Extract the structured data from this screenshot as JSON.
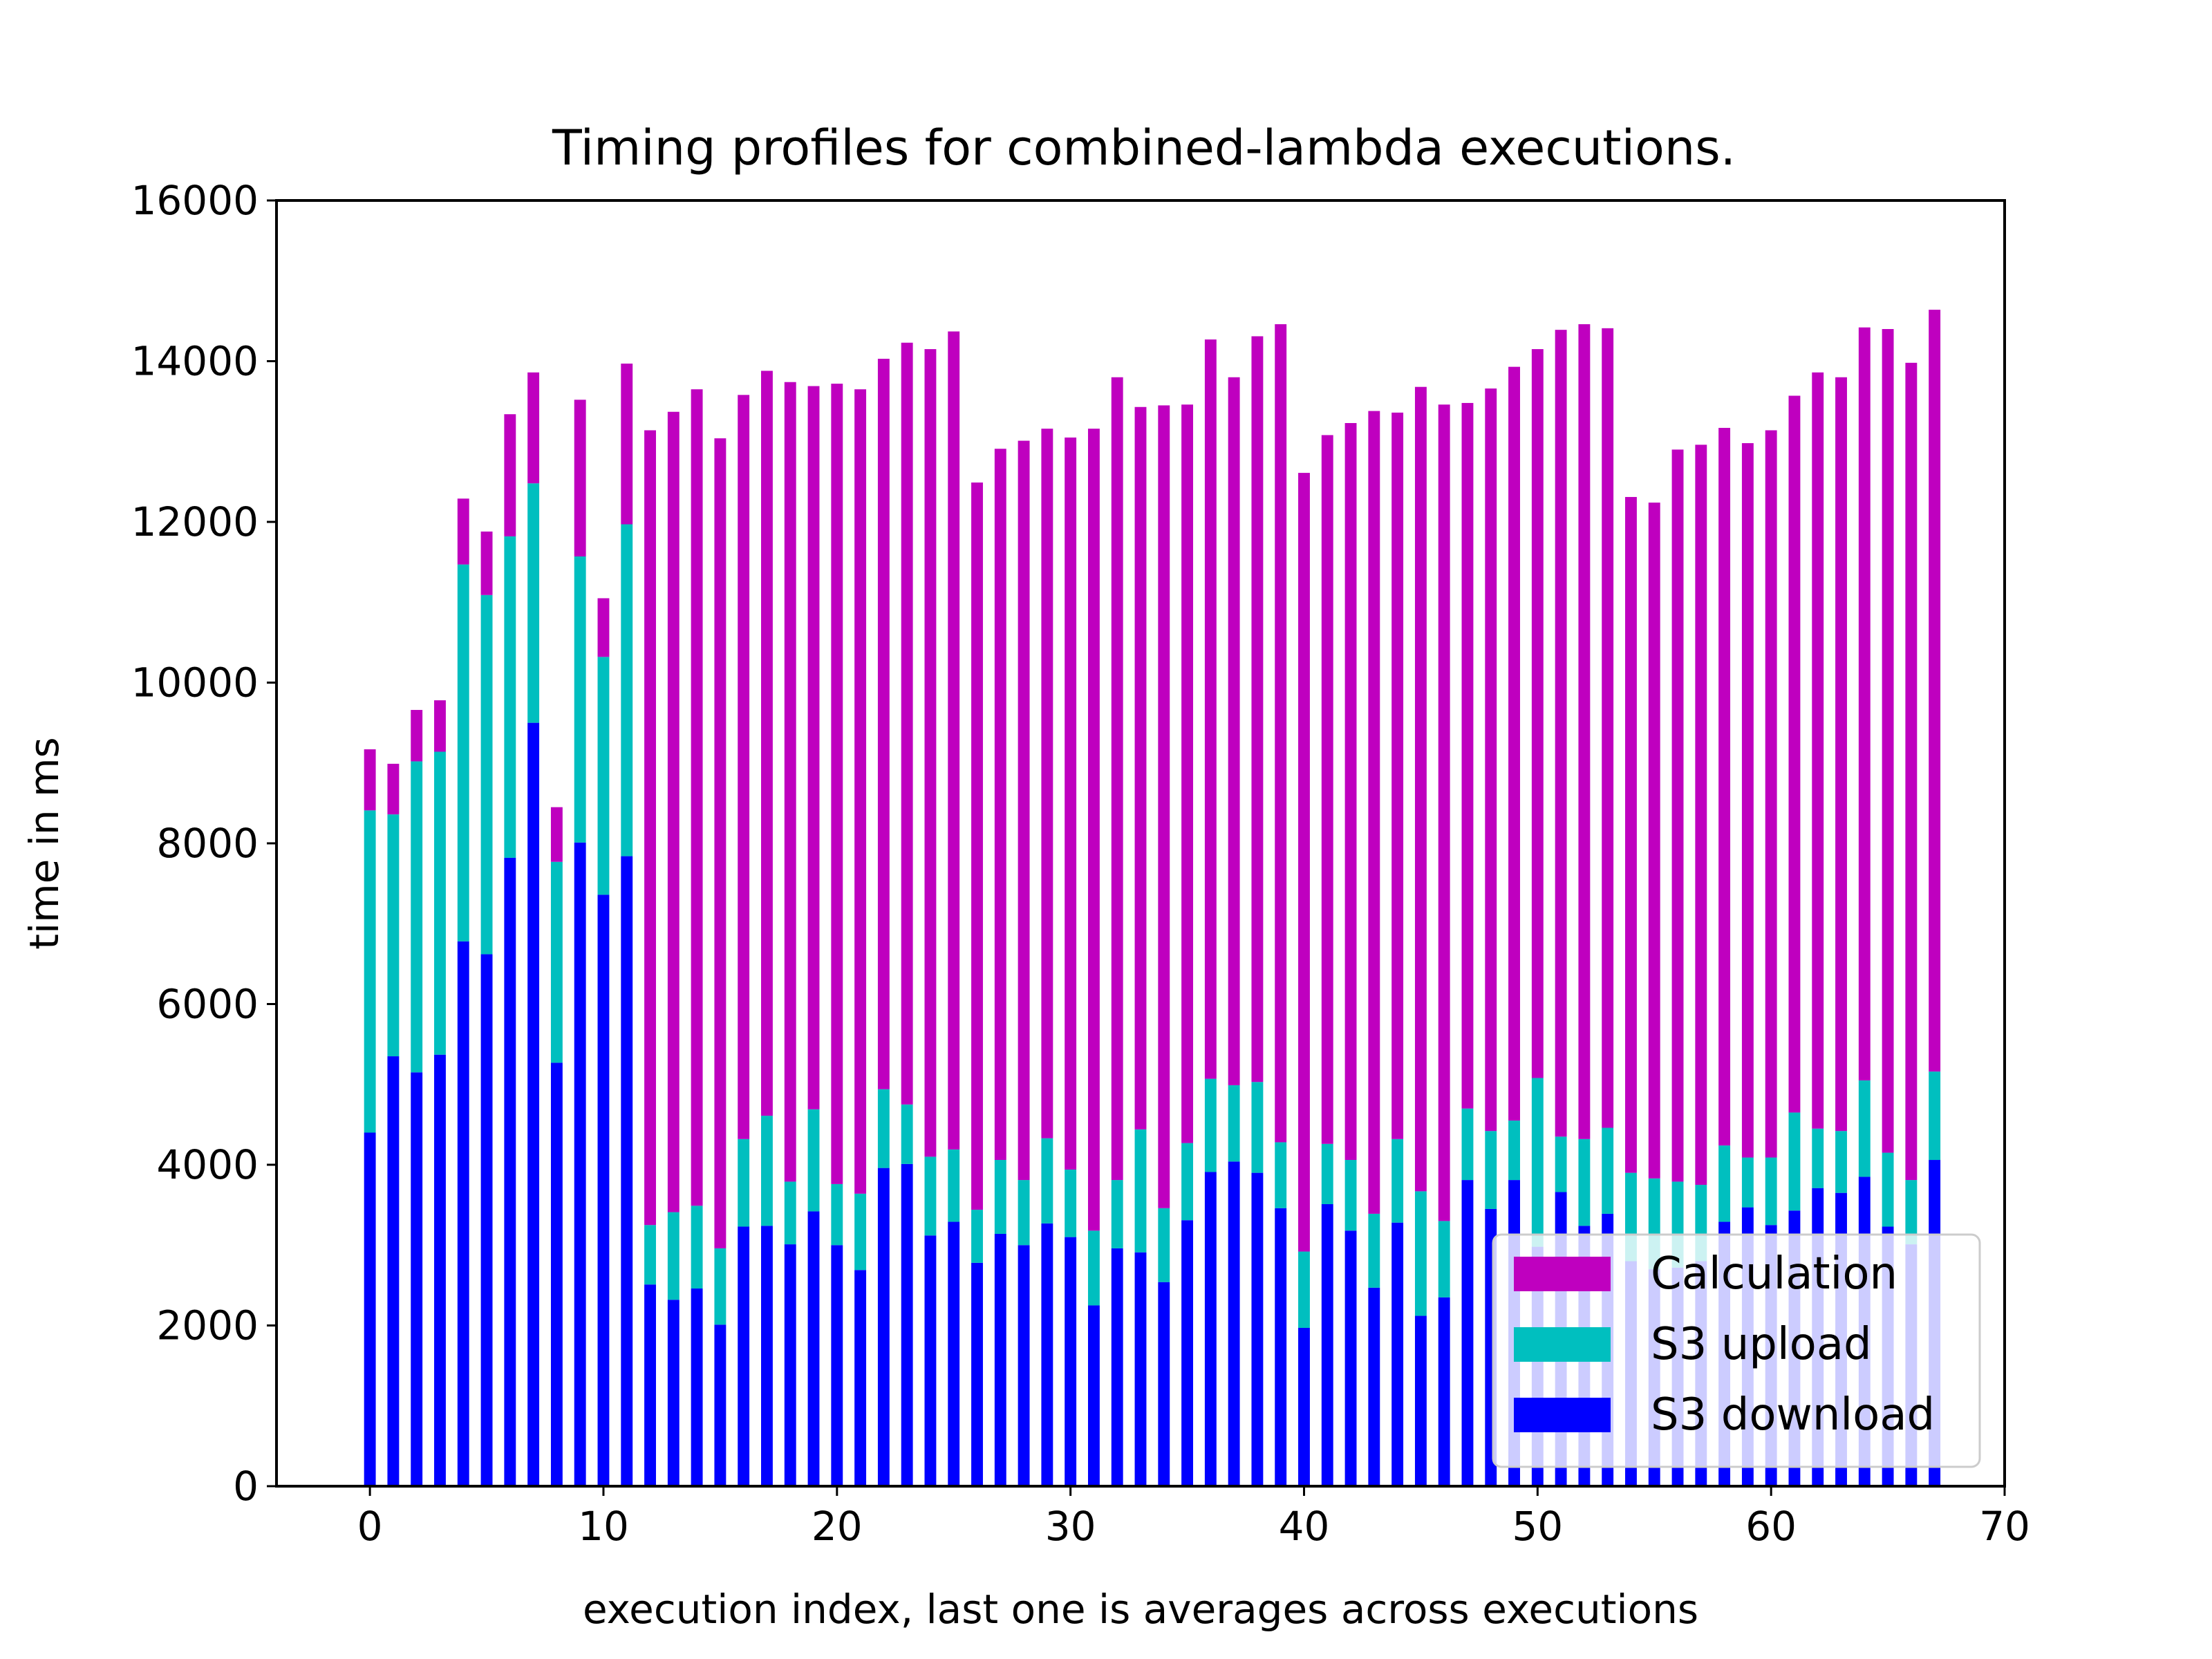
{
  "chart_data": {
    "type": "bar",
    "stacked": true,
    "title": "Timing profiles for combined-lambda executions.",
    "xlabel": "execution index, last one is averages across executions",
    "ylabel": "time in ms",
    "xlim": [
      -4,
      70
    ],
    "ylim": [
      0,
      16000
    ],
    "xticks": [
      0,
      10,
      20,
      30,
      40,
      50,
      60,
      70
    ],
    "yticks": [
      0,
      2000,
      4000,
      6000,
      8000,
      10000,
      12000,
      14000,
      16000
    ],
    "grid": false,
    "legend_position": "lower-right",
    "x": [
      0,
      1,
      2,
      3,
      4,
      5,
      6,
      7,
      8,
      9,
      10,
      11,
      12,
      13,
      14,
      15,
      16,
      17,
      18,
      19,
      20,
      21,
      22,
      23,
      24,
      25,
      26,
      27,
      28,
      29,
      30,
      31,
      32,
      33,
      34,
      35,
      36,
      37,
      38,
      39,
      40,
      41,
      42,
      43,
      44,
      45,
      46,
      47,
      48,
      49,
      50,
      51,
      52,
      53,
      54,
      55,
      56,
      57,
      58,
      59,
      60,
      61,
      62,
      63,
      64,
      65,
      66,
      67
    ],
    "series": [
      {
        "name": "S3 download",
        "color": "#0000ff",
        "values": [
          4400,
          5350,
          5150,
          5370,
          6780,
          6620,
          7820,
          9500,
          5270,
          8010,
          7360,
          7840,
          2510,
          2320,
          2460,
          2010,
          3230,
          3240,
          3010,
          3420,
          3000,
          2690,
          3960,
          4010,
          3120,
          3290,
          2780,
          3140,
          3000,
          3270,
          3100,
          2250,
          2960,
          2910,
          2540,
          3310,
          3910,
          4040,
          3900,
          3460,
          1970,
          3510,
          3180,
          2470,
          3280,
          2120,
          2350,
          3810,
          3450,
          3810,
          2980,
          3660,
          3240,
          3390,
          2800,
          2700,
          2720,
          2800,
          3290,
          3470,
          3250,
          3430,
          3710,
          3650,
          3850,
          3230,
          3010,
          4060
        ]
      },
      {
        "name": "S3 upload",
        "color": "#00bfbf",
        "values": [
          4010,
          3010,
          3870,
          3770,
          4690,
          4470,
          4000,
          2980,
          2500,
          3560,
          2960,
          4130,
          740,
          1090,
          1030,
          950,
          1090,
          1370,
          780,
          1270,
          760,
          950,
          980,
          740,
          980,
          900,
          660,
          920,
          810,
          1060,
          840,
          930,
          850,
          1530,
          920,
          960,
          1160,
          950,
          1130,
          820,
          950,
          750,
          880,
          920,
          1040,
          1550,
          950,
          890,
          970,
          740,
          2100,
          690,
          1080,
          1070,
          1100,
          1130,
          1070,
          950,
          950,
          620,
          840,
          1220,
          740,
          770,
          1200,
          920,
          800,
          1100
        ]
      },
      {
        "name": "Calculation",
        "color": "#bf00bf",
        "values": [
          760,
          630,
          640,
          640,
          820,
          790,
          1520,
          1380,
          680,
          1950,
          730,
          2000,
          9890,
          9960,
          10160,
          10080,
          9260,
          9270,
          9950,
          9000,
          9960,
          10010,
          9090,
          9480,
          10050,
          10180,
          9050,
          8850,
          9200,
          8830,
          9110,
          9980,
          9990,
          8990,
          9990,
          9190,
          9200,
          8810,
          9280,
          10180,
          9690,
          8820,
          9170,
          9990,
          9040,
          10010,
          10160,
          8780,
          9240,
          9380,
          9070,
          10040,
          10140,
          9950,
          8410,
          8410,
          9110,
          9210,
          8930,
          8890,
          9050,
          8920,
          9410,
          9380,
          9370,
          10250,
          10170,
          9480
        ]
      }
    ],
    "legend": [
      {
        "label": "Calculation",
        "color": "#bf00bf"
      },
      {
        "label": "S3 upload",
        "color": "#00bfbf"
      },
      {
        "label": "S3 download",
        "color": "#0000ff"
      }
    ]
  }
}
